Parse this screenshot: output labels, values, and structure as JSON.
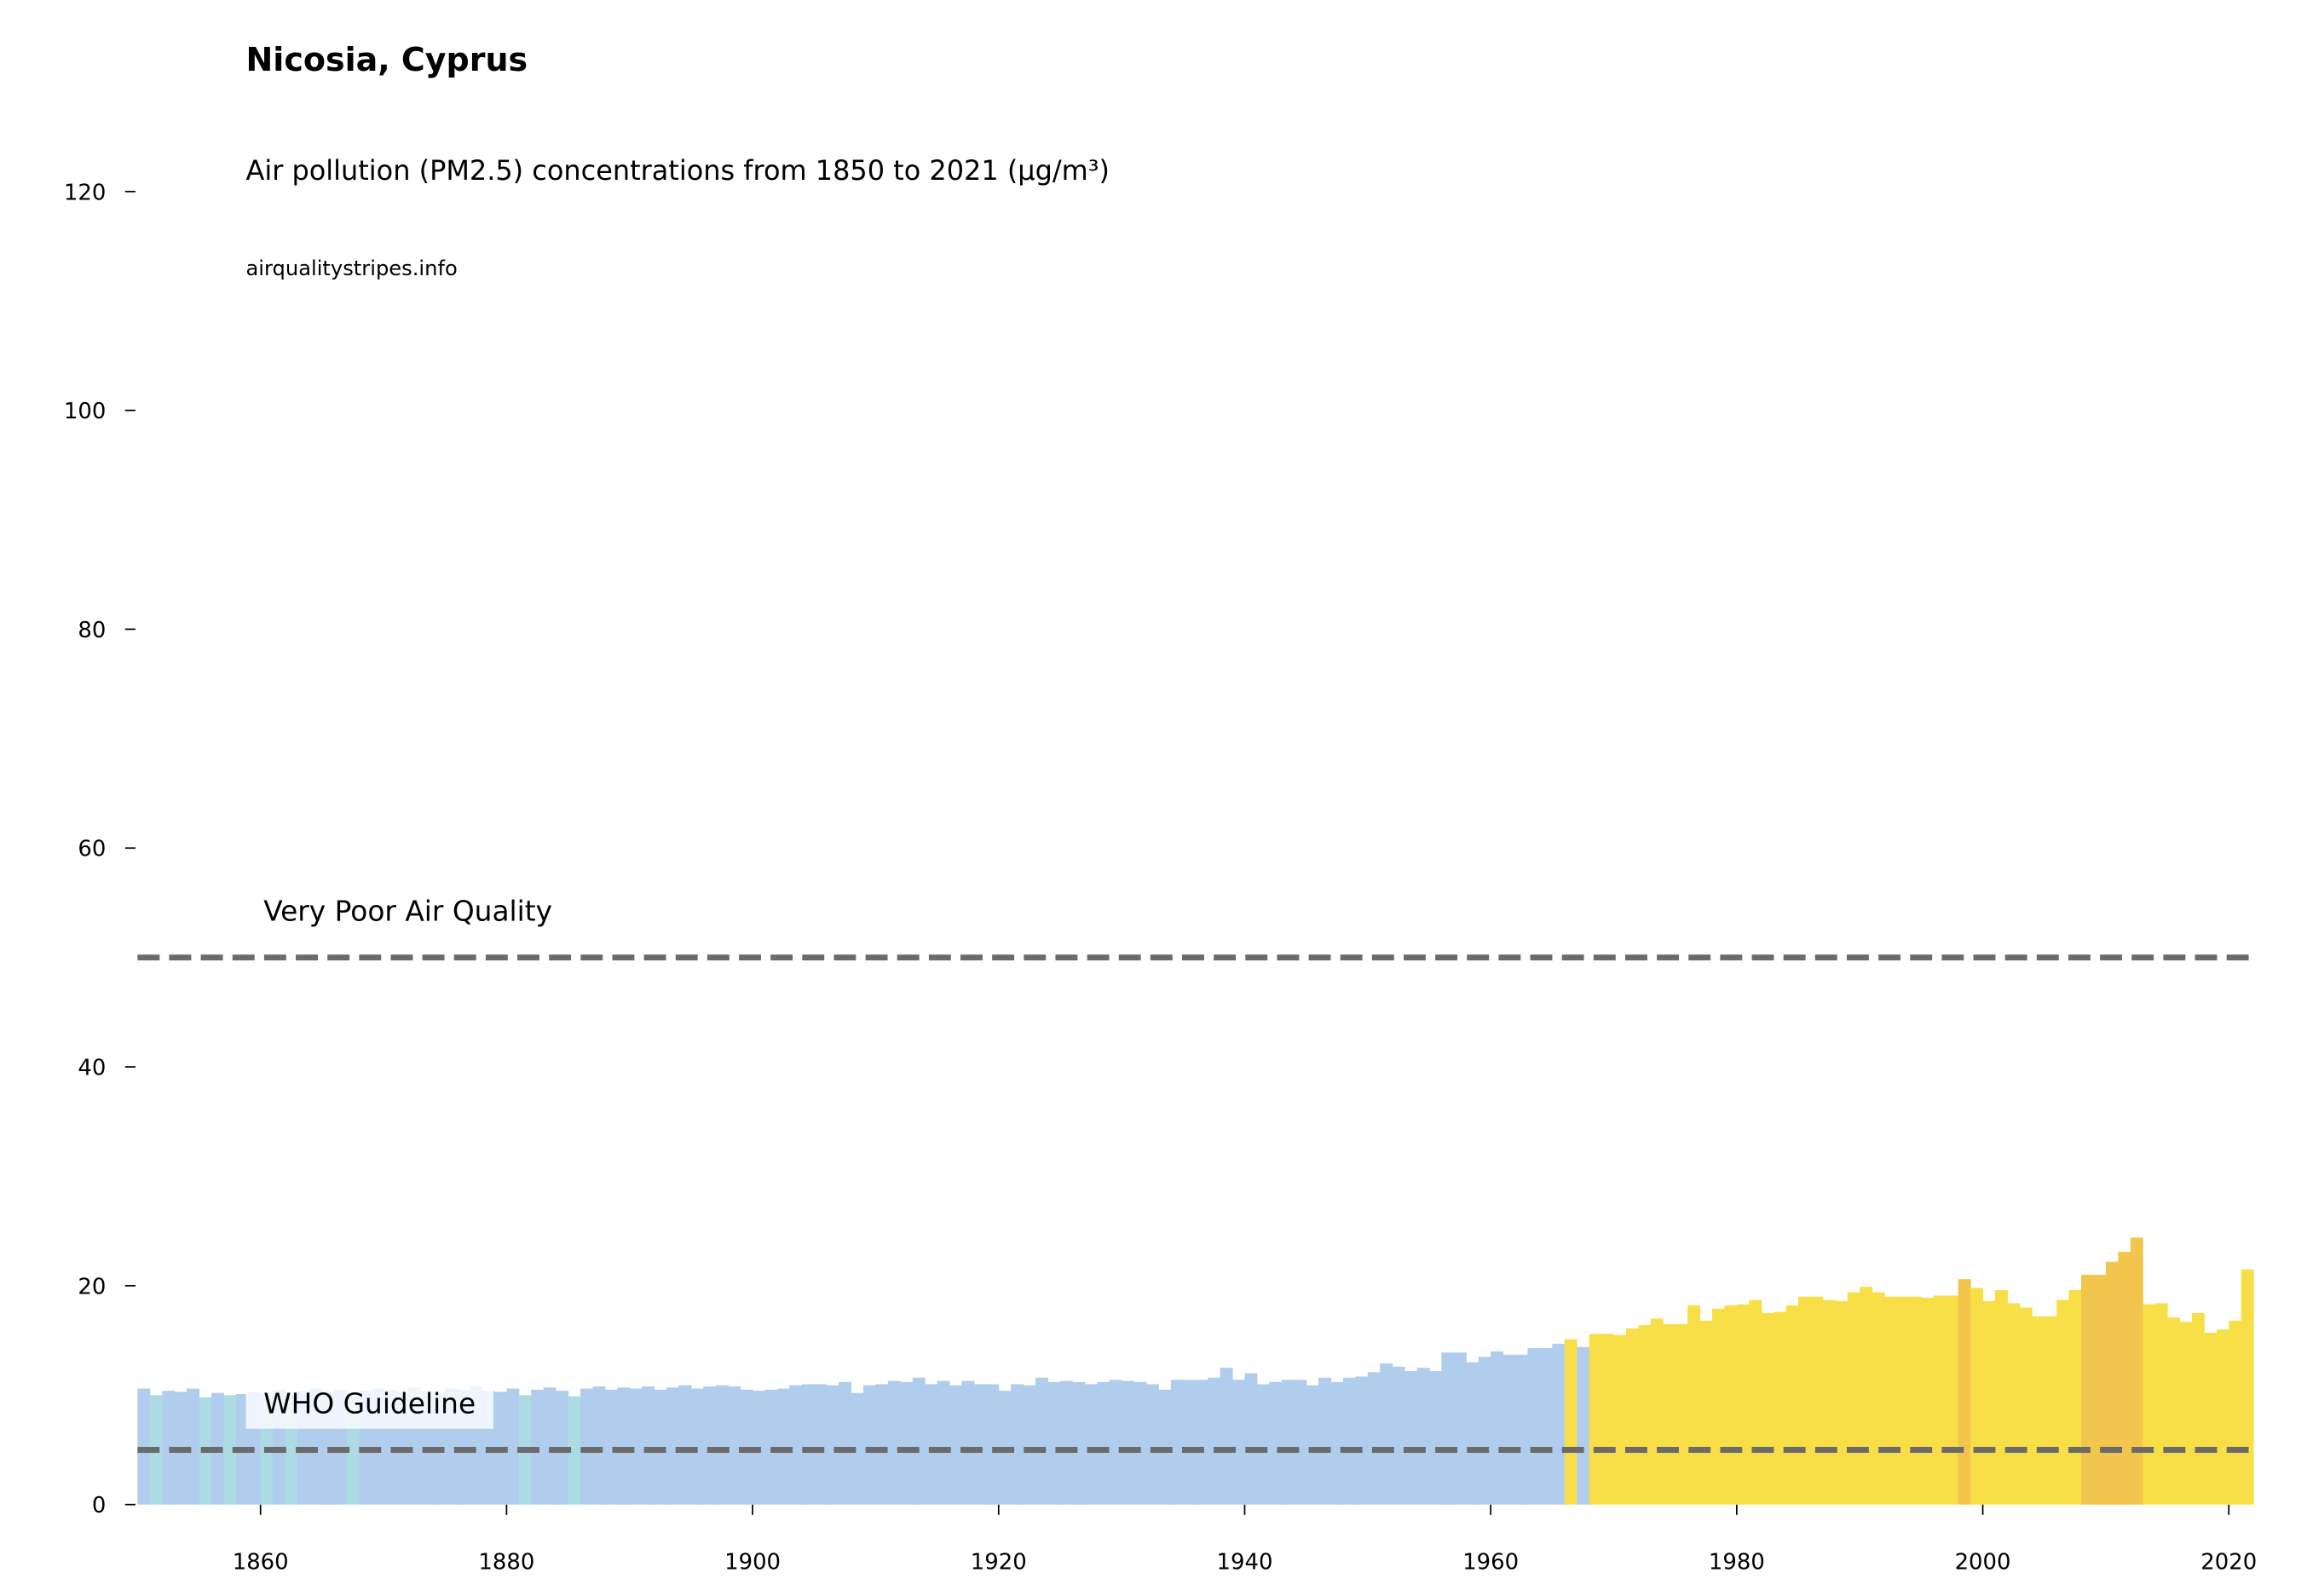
{
  "chart_data": {
    "type": "bar",
    "title": "Nicosia, Cyprus",
    "subtitle": "Air pollution (PM2.5) concentrations from 1850 to 2021 (µg/m³)",
    "source": "airqualitystripes.info",
    "x": [
      1850,
      1851,
      1852,
      1853,
      1854,
      1855,
      1856,
      1857,
      1858,
      1859,
      1860,
      1861,
      1862,
      1863,
      1864,
      1865,
      1866,
      1867,
      1868,
      1869,
      1870,
      1871,
      1872,
      1873,
      1874,
      1875,
      1876,
      1877,
      1878,
      1879,
      1880,
      1881,
      1882,
      1883,
      1884,
      1885,
      1886,
      1887,
      1888,
      1889,
      1890,
      1891,
      1892,
      1893,
      1894,
      1895,
      1896,
      1897,
      1898,
      1899,
      1900,
      1901,
      1902,
      1903,
      1904,
      1905,
      1906,
      1907,
      1908,
      1909,
      1910,
      1911,
      1912,
      1913,
      1914,
      1915,
      1916,
      1917,
      1918,
      1919,
      1920,
      1921,
      1922,
      1923,
      1924,
      1925,
      1926,
      1927,
      1928,
      1929,
      1930,
      1931,
      1932,
      1933,
      1934,
      1935,
      1936,
      1937,
      1938,
      1939,
      1940,
      1941,
      1942,
      1943,
      1944,
      1945,
      1946,
      1947,
      1948,
      1949,
      1950,
      1951,
      1952,
      1953,
      1954,
      1955,
      1956,
      1957,
      1958,
      1959,
      1960,
      1961,
      1962,
      1963,
      1964,
      1965,
      1966,
      1967,
      1968,
      1969,
      1970,
      1971,
      1972,
      1973,
      1974,
      1975,
      1976,
      1977,
      1978,
      1979,
      1980,
      1981,
      1982,
      1983,
      1984,
      1985,
      1986,
      1987,
      1988,
      1989,
      1990,
      1991,
      1992,
      1993,
      1994,
      1995,
      1996,
      1997,
      1998,
      1999,
      2000,
      2001,
      2002,
      2003,
      2004,
      2005,
      2006,
      2007,
      2008,
      2009,
      2010,
      2011,
      2012,
      2013,
      2014,
      2015,
      2016,
      2017,
      2018,
      2019,
      2020,
      2021
    ],
    "values": [
      10.6,
      10,
      10.4,
      10.3,
      10.6,
      9.8,
      10.2,
      10,
      10.1,
      10.3,
      10.2,
      10.5,
      10,
      10.4,
      10.6,
      10.3,
      10.5,
      9.9,
      10.4,
      10.6,
      10.5,
      10.3,
      10.7,
      10.4,
      10.2,
      10.6,
      10.5,
      10.8,
      10.4,
      10.3,
      10.6,
      10,
      10.5,
      10.7,
      10.4,
      9.9,
      10.6,
      10.8,
      10.5,
      10.7,
      10.6,
      10.8,
      10.5,
      10.7,
      10.9,
      10.6,
      10.8,
      10.9,
      10.8,
      10.5,
      10.4,
      10.5,
      10.6,
      10.9,
      11,
      11,
      10.9,
      11.2,
      10.2,
      10.9,
      11,
      11.3,
      11.2,
      11.6,
      11,
      11.3,
      10.9,
      11.3,
      11,
      11,
      10.4,
      11,
      10.9,
      11.6,
      11.2,
      11.3,
      11.2,
      11,
      11.2,
      11.4,
      11.3,
      11.2,
      11,
      10.5,
      11.4,
      11.4,
      11.4,
      11.6,
      12.5,
      11.4,
      12,
      11,
      11.2,
      11.4,
      11.4,
      10.9,
      11.6,
      11.2,
      11.6,
      11.7,
      12.1,
      12.9,
      12.6,
      12.2,
      12.5,
      12.2,
      13.9,
      13.9,
      13,
      13.5,
      14,
      13.7,
      13.7,
      14.3,
      14.3,
      14.7,
      15.1,
      14.4,
      15.6,
      15.6,
      15.5,
      16.1,
      16.4,
      17,
      16.5,
      16.5,
      18.2,
      16.8,
      17.9,
      18.2,
      18.3,
      18.7,
      17.5,
      17.6,
      18.2,
      19,
      19,
      18.7,
      18.6,
      19.4,
      19.9,
      19.4,
      19,
      19,
      19,
      18.9,
      19.1,
      19.1,
      20.6,
      19.8,
      18.6,
      19.6,
      18.4,
      18,
      17.2,
      17.2,
      18.7,
      19.6,
      21,
      21,
      22.2,
      23.1,
      24.4,
      18.3,
      18.4,
      17.1,
      16.7,
      17.5,
      15.7,
      16,
      16.8,
      21.5
    ],
    "colors": [
      "#b0cdee",
      "#acdbe4",
      "#b0cdee",
      "#b0cdee",
      "#b0cdee",
      "#acdbe4",
      "#b0cdee",
      "#acdbe4",
      "#b0cdee",
      "#b0cdee",
      "#acdbe4",
      "#b0cdee",
      "#acdbe4",
      "#b0cdee",
      "#b0cdee",
      "#b0cdee",
      "#b0cdee",
      "#acdbe4",
      "#b0cdee",
      "#b0cdee",
      "#b0cdee",
      "#b0cdee",
      "#b0cdee",
      "#b0cdee",
      "#b0cdee",
      "#b0cdee",
      "#b0cdee",
      "#b0cdee",
      "#b0cdee",
      "#b0cdee",
      "#b0cdee",
      "#acdbe4",
      "#b0cdee",
      "#b0cdee",
      "#b0cdee",
      "#acdbe4",
      "#b0cdee",
      "#b0cdee",
      "#b0cdee",
      "#b0cdee",
      "#b0cdee",
      "#b0cdee",
      "#b0cdee",
      "#b0cdee",
      "#b0cdee",
      "#b0cdee",
      "#b0cdee",
      "#b0cdee",
      "#b0cdee",
      "#b0cdee",
      "#b0cdee",
      "#b0cdee",
      "#b0cdee",
      "#b0cdee",
      "#b0cdee",
      "#b0cdee",
      "#b0cdee",
      "#b0cdee",
      "#b0cdee",
      "#b0cdee",
      "#b0cdee",
      "#b0cdee",
      "#b0cdee",
      "#b0cdee",
      "#b0cdee",
      "#b0cdee",
      "#b0cdee",
      "#b0cdee",
      "#b0cdee",
      "#b0cdee",
      "#b0cdee",
      "#b0cdee",
      "#b0cdee",
      "#b0cdee",
      "#b0cdee",
      "#b0cdee",
      "#b0cdee",
      "#b0cdee",
      "#b0cdee",
      "#b0cdee",
      "#b0cdee",
      "#b0cdee",
      "#b0cdee",
      "#b0cdee",
      "#b0cdee",
      "#b0cdee",
      "#b0cdee",
      "#b0cdee",
      "#b0cdee",
      "#b0cdee",
      "#b0cdee",
      "#b0cdee",
      "#b0cdee",
      "#b0cdee",
      "#b0cdee",
      "#b0cdee",
      "#b0cdee",
      "#b0cdee",
      "#b0cdee",
      "#b0cdee",
      "#b0cdee",
      "#b0cdee",
      "#b0cdee",
      "#b0cdee",
      "#b0cdee",
      "#b0cdee",
      "#b0cdee",
      "#b0cdee",
      "#b0cdee",
      "#b0cdee",
      "#b0cdee",
      "#b0cdee",
      "#b0cdee",
      "#b0cdee",
      "#b0cdee",
      "#b0cdee",
      "#f8df47",
      "#b0cdee",
      "#f8df47",
      "#f8df47",
      "#f8df47",
      "#f8df47",
      "#f8df47",
      "#f8df47",
      "#f8df47",
      "#f8df47",
      "#f8df47",
      "#f8df47",
      "#f8df47",
      "#f8df47",
      "#f8df47",
      "#f8df47",
      "#f8df47",
      "#f8df47",
      "#f8df47",
      "#f8df47",
      "#f8df47",
      "#f8df47",
      "#f8df47",
      "#f8df47",
      "#f8df47",
      "#f8df47",
      "#f8df47",
      "#f8df47",
      "#f8df47",
      "#f8df47",
      "#f8df47",
      "#f8df47",
      "#f2c64c",
      "#f8df47",
      "#f8df47",
      "#f8df47",
      "#f8df47",
      "#f8df47",
      "#f8df47",
      "#f8df47",
      "#f8df47",
      "#f8df47",
      "#f2c64c",
      "#f2c64c",
      "#f2c64c",
      "#f2c64c",
      "#f2c64c",
      "#f8df47",
      "#f8df47",
      "#f8df47",
      "#f8df47",
      "#f8df47",
      "#f8df47",
      "#f8df47",
      "#f8df47",
      "#f8df47"
    ],
    "reference_lines": [
      {
        "value": 50,
        "label": "Very Poor Air Quality"
      },
      {
        "value": 5,
        "label": "WHO Guideline"
      }
    ],
    "reference_color": "#6b6b6b",
    "xlim": [
      1850,
      2022
    ],
    "xticks": [
      1860,
      1880,
      1900,
      1920,
      1940,
      1960,
      1980,
      2000,
      2020
    ],
    "ylim": [
      0,
      120
    ],
    "yticks": [
      0,
      20,
      40,
      60,
      80,
      100,
      120
    ]
  }
}
